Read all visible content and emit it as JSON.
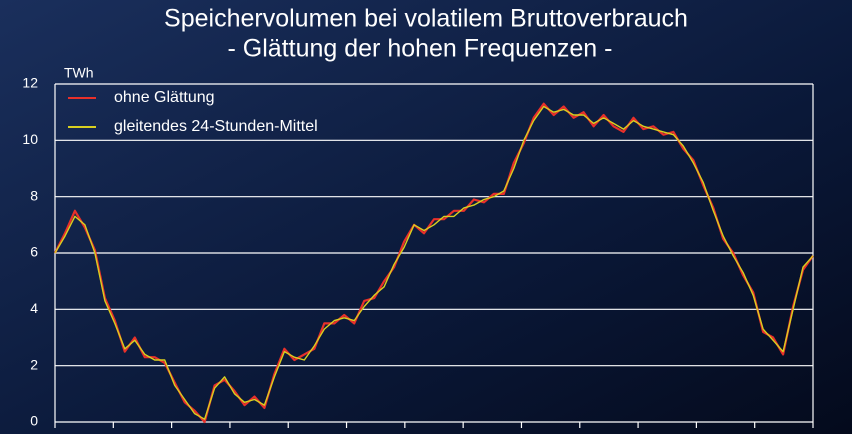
{
  "chart_data": {
    "type": "line",
    "title": "Speichervolumen bei volatilem Bruttoverbrauch",
    "subtitle": "- Glättung der hohen Frequenzen -",
    "y_label": "TWh",
    "ylim": [
      0,
      12
    ],
    "yticks": [
      0,
      2,
      4,
      6,
      8,
      10,
      12
    ],
    "grid": true,
    "legend": "top-left",
    "series": [
      {
        "name": "ohne Glättung",
        "color": "#e8302a",
        "values": [
          6.0,
          6.7,
          7.5,
          6.9,
          6.1,
          4.4,
          3.6,
          2.5,
          3.0,
          2.3,
          2.3,
          2.1,
          1.4,
          0.7,
          0.4,
          0.0,
          1.3,
          1.5,
          1.1,
          0.6,
          0.9,
          0.5,
          1.7,
          2.6,
          2.2,
          2.4,
          2.6,
          3.5,
          3.5,
          3.8,
          3.5,
          4.3,
          4.4,
          5.0,
          5.5,
          6.4,
          7.0,
          6.7,
          7.2,
          7.2,
          7.5,
          7.5,
          7.9,
          7.8,
          8.1,
          8.1,
          9.2,
          9.9,
          10.8,
          11.3,
          10.9,
          11.2,
          10.8,
          11.0,
          10.5,
          10.9,
          10.5,
          10.3,
          10.8,
          10.4,
          10.5,
          10.2,
          10.3,
          9.7,
          9.3,
          8.4,
          7.6,
          6.5,
          6.0,
          5.2,
          4.6,
          3.2,
          3.0,
          2.4,
          4.1,
          5.4,
          5.9
        ]
      },
      {
        "name": "gleitendes 24-Stunden-Mittel",
        "color": "#d8d020",
        "values": [
          6.0,
          6.6,
          7.3,
          7.0,
          6.0,
          4.3,
          3.5,
          2.6,
          2.9,
          2.4,
          2.2,
          2.2,
          1.3,
          0.8,
          0.3,
          0.1,
          1.2,
          1.6,
          1.0,
          0.7,
          0.8,
          0.6,
          1.6,
          2.5,
          2.3,
          2.2,
          2.7,
          3.3,
          3.6,
          3.7,
          3.6,
          4.1,
          4.5,
          4.8,
          5.6,
          6.2,
          7.0,
          6.8,
          7.0,
          7.3,
          7.3,
          7.6,
          7.7,
          7.9,
          8.0,
          8.2,
          9.0,
          10.0,
          10.7,
          11.2,
          11.0,
          11.1,
          10.9,
          10.9,
          10.6,
          10.8,
          10.6,
          10.4,
          10.7,
          10.5,
          10.4,
          10.3,
          10.2,
          9.8,
          9.2,
          8.5,
          7.5,
          6.6,
          5.9,
          5.3,
          4.5,
          3.3,
          2.9,
          2.5,
          4.0,
          5.5,
          5.9
        ]
      }
    ]
  }
}
